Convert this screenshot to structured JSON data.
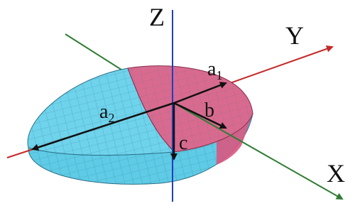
{
  "axes": {
    "z": "Z",
    "y": "Y",
    "x": "X"
  },
  "labels": {
    "a1": {
      "main": "a",
      "sub": "1"
    },
    "a2": {
      "main": "a",
      "sub": "2"
    },
    "b": "b",
    "c": "c"
  }
}
